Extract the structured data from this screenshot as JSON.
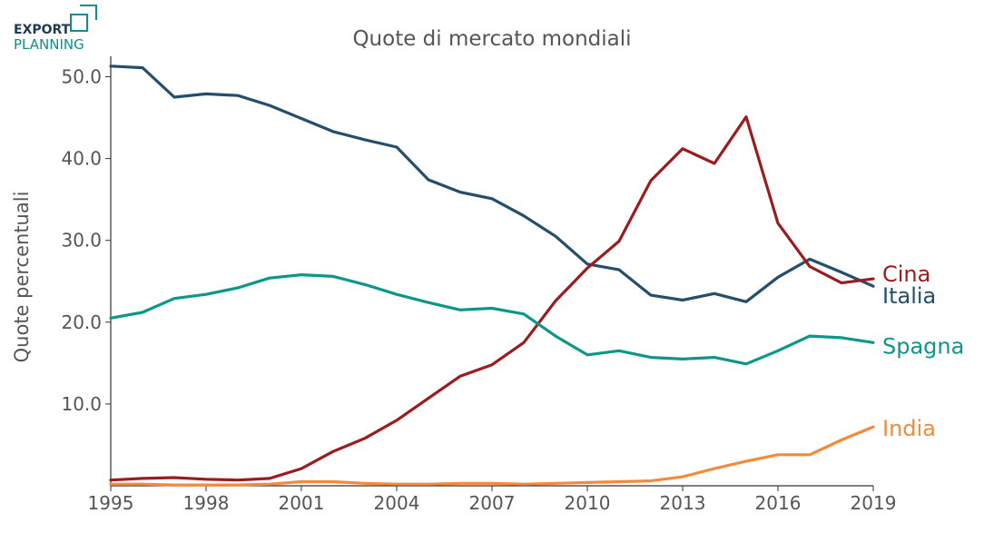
{
  "logo": {
    "line1": "EXPORT",
    "line2": "PLANNING",
    "color": "#0f8f8a",
    "text_color": "#1e3a55"
  },
  "chart_data": {
    "type": "line",
    "title": "Quote di mercato mondiali",
    "xlabel": "",
    "ylabel": "Quote percentuali",
    "xlim": [
      1995,
      2019
    ],
    "ylim": [
      0,
      52.5
    ],
    "x_ticks": [
      "1995",
      "1998",
      "2001",
      "2004",
      "2007",
      "2010",
      "2013",
      "2016",
      "2019"
    ],
    "y_ticks": [
      "10.0",
      "20.0",
      "30.0",
      "40.0",
      "50.0"
    ],
    "grid": false,
    "legend": "labels at line ends (right)",
    "x": [
      1995,
      1996,
      1997,
      1998,
      1999,
      2000,
      2001,
      2002,
      2003,
      2004,
      2005,
      2006,
      2007,
      2008,
      2009,
      2010,
      2011,
      2012,
      2013,
      2014,
      2015,
      2016,
      2017,
      2018,
      2019
    ],
    "series": [
      {
        "name": "Italia",
        "color": "#254e6b",
        "values": [
          51.3,
          51.1,
          47.5,
          47.9,
          47.7,
          46.5,
          44.9,
          43.3,
          42.3,
          41.4,
          37.4,
          35.9,
          35.1,
          33.0,
          30.5,
          27.1,
          26.4,
          23.3,
          22.7,
          23.5,
          22.5,
          25.5,
          27.7,
          26.1,
          24.4
        ]
      },
      {
        "name": "Cina",
        "color": "#9b1c1f",
        "values": [
          0.7,
          0.9,
          1.0,
          0.8,
          0.7,
          0.9,
          2.1,
          4.2,
          5.8,
          8.0,
          10.7,
          13.4,
          14.8,
          17.5,
          22.6,
          26.6,
          29.9,
          37.3,
          41.2,
          39.4,
          45.1,
          32.1,
          26.8,
          24.8,
          25.3
        ]
      },
      {
        "name": "Spagna",
        "color": "#0e9688",
        "values": [
          20.5,
          21.2,
          22.9,
          23.4,
          24.2,
          25.4,
          25.8,
          25.6,
          24.6,
          23.4,
          22.4,
          21.5,
          21.7,
          21.0,
          18.3,
          16.0,
          16.5,
          15.7,
          15.5,
          15.7,
          14.9,
          16.5,
          18.3,
          18.1,
          17.5
        ]
      },
      {
        "name": "India",
        "color": "#f58a3a",
        "values": [
          0.2,
          0.2,
          0.1,
          0.1,
          0.1,
          0.2,
          0.5,
          0.5,
          0.3,
          0.2,
          0.2,
          0.3,
          0.3,
          0.2,
          0.3,
          0.4,
          0.5,
          0.6,
          1.1,
          2.1,
          3.0,
          3.8,
          3.8,
          5.6,
          7.2
        ]
      }
    ]
  }
}
